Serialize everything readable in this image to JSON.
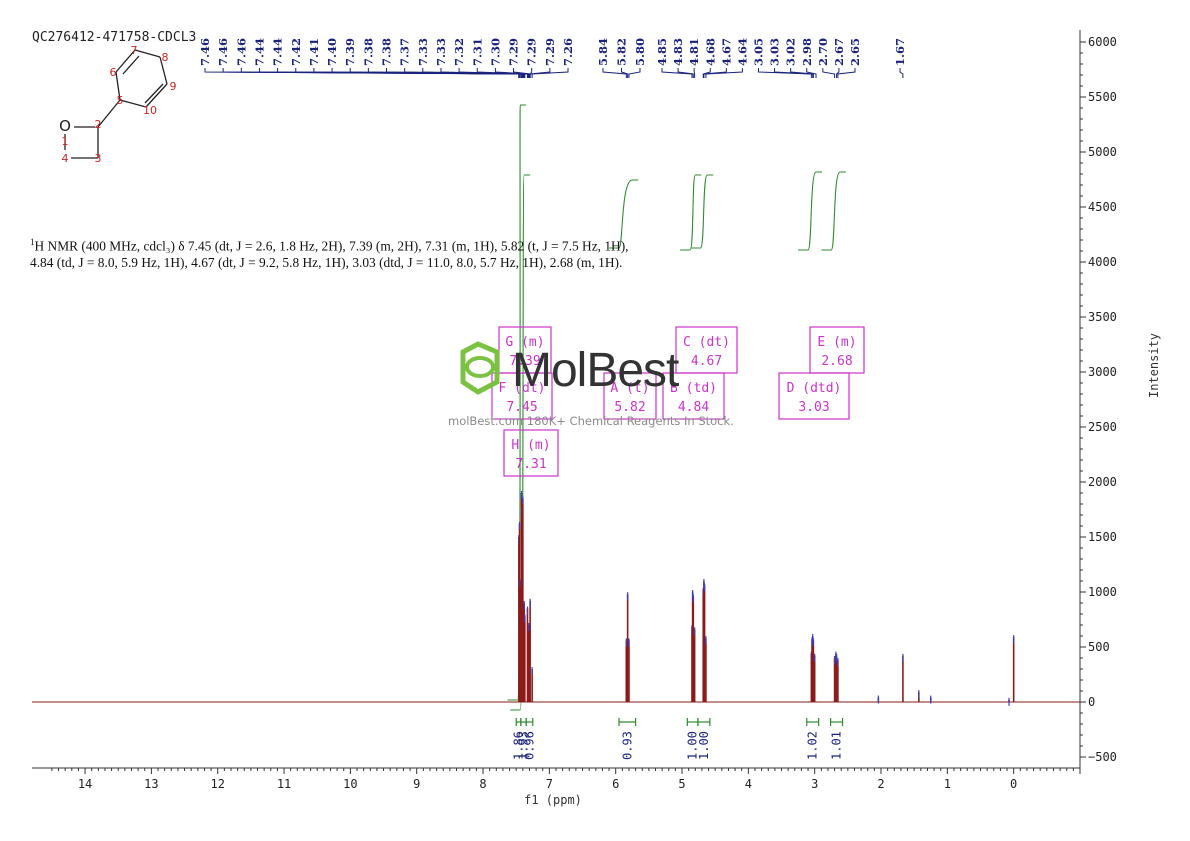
{
  "header": {
    "sample_id": "QC276412-471758-CDCL3",
    "intensity_label": "Intensity",
    "xlabel": "f1 (ppm)"
  },
  "summary": {
    "nucleus_sup": "1",
    "text": "H NMR (400 MHz, cdcl₃) δ 7.45 (dt, J = 2.6, 1.8 Hz, 2H), 7.39 (m, 2H), 7.31 (m, 1H), 5.82 (t, J = 7.5 Hz, 1H), 4.84 (td, J = 8.0, 5.9 Hz, 1H), 4.67 (dt, J = 9.2, 5.8 Hz, 1H), 3.03 (dtd, J = 11.0, 8.0, 5.7 Hz, 1H), 2.68 (m, 1H)."
  },
  "watermark": {
    "brand": "MolBest",
    "url": "molBest.com 180K+ Chemical Reagents In Stock."
  },
  "molecule": {
    "atoms": [
      "O",
      "1",
      "2",
      "3",
      "4",
      "5",
      "6",
      "7",
      "8",
      "9",
      "10"
    ]
  },
  "colors": {
    "spectrum": "#8b1a1a",
    "peak_labels": "#1a237e",
    "integral": "#2e8b2e",
    "multiplet_box": "#cc33cc",
    "atom_numbers": "#cc2222"
  },
  "chart_data": {
    "type": "line",
    "title": "",
    "xlabel": "f1 (ppm)",
    "ylabel": "Intensity",
    "xlim": [
      14.8,
      -1.0
    ],
    "ylim": [
      -600,
      6100
    ],
    "x_reversed": true,
    "x_ticks": [
      14,
      13,
      12,
      11,
      10,
      9,
      8,
      7,
      6,
      5,
      4,
      3,
      2,
      1,
      0
    ],
    "y_ticks": [
      -500,
      0,
      500,
      1000,
      1500,
      2000,
      2500,
      3000,
      3500,
      4000,
      4500,
      5000,
      5500,
      6000
    ],
    "peaks": [
      {
        "ppm": 7.46,
        "height": 1500
      },
      {
        "ppm": 7.45,
        "height": 1620
      },
      {
        "ppm": 7.44,
        "height": 1100
      },
      {
        "ppm": 7.42,
        "height": 1900
      },
      {
        "ppm": 7.41,
        "height": 1750
      },
      {
        "ppm": 7.4,
        "height": 1850
      },
      {
        "ppm": 7.38,
        "height": 900
      },
      {
        "ppm": 7.37,
        "height": 780
      },
      {
        "ppm": 7.33,
        "height": 850
      },
      {
        "ppm": 7.31,
        "height": 700
      },
      {
        "ppm": 7.29,
        "height": 920
      },
      {
        "ppm": 7.26,
        "height": 300
      },
      {
        "ppm": 5.84,
        "height": 560
      },
      {
        "ppm": 5.82,
        "height": 980
      },
      {
        "ppm": 5.8,
        "height": 560
      },
      {
        "ppm": 4.85,
        "height": 680
      },
      {
        "ppm": 4.84,
        "height": 1000
      },
      {
        "ppm": 4.83,
        "height": 960
      },
      {
        "ppm": 4.81,
        "height": 660
      },
      {
        "ppm": 4.68,
        "height": 1020
      },
      {
        "ppm": 4.67,
        "height": 1100
      },
      {
        "ppm": 4.66,
        "height": 1060
      },
      {
        "ppm": 4.64,
        "height": 580
      },
      {
        "ppm": 3.05,
        "height": 440
      },
      {
        "ppm": 3.04,
        "height": 570
      },
      {
        "ppm": 3.03,
        "height": 600
      },
      {
        "ppm": 3.02,
        "height": 560
      },
      {
        "ppm": 3.0,
        "height": 420
      },
      {
        "ppm": 2.7,
        "height": 400
      },
      {
        "ppm": 2.68,
        "height": 440
      },
      {
        "ppm": 2.67,
        "height": 420
      },
      {
        "ppm": 2.65,
        "height": 380
      },
      {
        "ppm": 2.04,
        "height": 40
      },
      {
        "ppm": 1.67,
        "height": 420
      },
      {
        "ppm": 1.43,
        "height": 90
      },
      {
        "ppm": 1.25,
        "height": 40
      },
      {
        "ppm": 0.07,
        "height": 20
      },
      {
        "ppm": 0.0,
        "height": 590
      }
    ],
    "peak_labels": {
      "group1": [
        "7.46",
        "7.46",
        "7.46",
        "7.44",
        "7.44",
        "7.42",
        "7.41",
        "7.40",
        "7.39",
        "7.38",
        "7.38",
        "7.37",
        "7.33",
        "7.33",
        "7.32",
        "7.31",
        "7.30",
        "7.29",
        "7.29",
        "7.29",
        "7.26"
      ],
      "group2": [
        "5.84",
        "5.82",
        "5.80"
      ],
      "group3": [
        "4.85",
        "4.83",
        "4.81",
        "4.68",
        "4.67",
        "4.64",
        "3.05",
        "3.03",
        "3.02",
        "2.98",
        "2.70",
        "2.67",
        "2.65"
      ],
      "single": [
        "1.67"
      ]
    },
    "integrals": [
      {
        "from": 7.5,
        "to": 7.43,
        "value": "1.86"
      },
      {
        "from": 7.43,
        "to": 7.35,
        "value": "1.93"
      },
      {
        "from": 7.35,
        "to": 7.25,
        "value": "0.96"
      },
      {
        "from": 5.95,
        "to": 5.7,
        "value": "0.93"
      },
      {
        "from": 4.92,
        "to": 4.76,
        "value": "1.00"
      },
      {
        "from": 4.76,
        "to": 4.58,
        "value": "1.00"
      },
      {
        "from": 3.12,
        "to": 2.94,
        "value": "1.02"
      },
      {
        "from": 2.76,
        "to": 2.58,
        "value": "1.01"
      }
    ],
    "multiplets": [
      {
        "id": "G",
        "mult": "m",
        "shift": "7.39"
      },
      {
        "id": "F",
        "mult": "dt",
        "shift": "7.45"
      },
      {
        "id": "H",
        "mult": "m",
        "shift": "7.31"
      },
      {
        "id": "A",
        "mult": "t",
        "shift": "5.82"
      },
      {
        "id": "B",
        "mult": "td",
        "shift": "4.84"
      },
      {
        "id": "C",
        "mult": "dt",
        "shift": "4.67"
      },
      {
        "id": "D",
        "mult": "dtd",
        "shift": "3.03"
      },
      {
        "id": "E",
        "mult": "m",
        "shift": "2.68"
      }
    ]
  }
}
